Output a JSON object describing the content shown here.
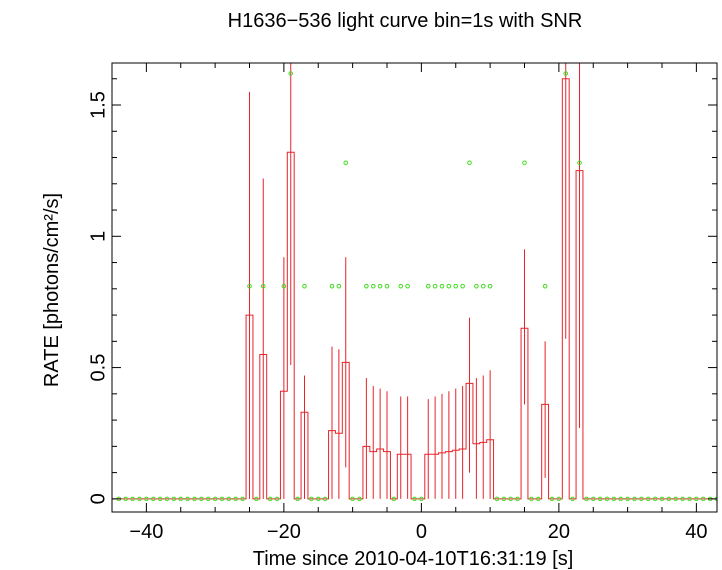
{
  "chart_data": {
    "type": "line",
    "title": "H1636−536 light curve bin=1s with SNR",
    "xlabel": "Time since 2010-04-10T16:31:19 [s]",
    "ylabel": "RATE [photons/cm²/s]",
    "xlim": [
      -45,
      43
    ],
    "ylim": [
      -0.05,
      1.66
    ],
    "x_ticks": [
      -40,
      -20,
      0,
      20,
      40
    ],
    "x_tick_labels": [
      "−40",
      "−20",
      "0",
      "20",
      "40"
    ],
    "y_ticks": [
      0,
      0.5,
      1,
      1.5
    ],
    "y_tick_labels": [
      "0",
      "0.5",
      "1",
      "1.5"
    ],
    "series": [
      {
        "style": "step with error bars",
        "color": "#e8232a",
        "x": [
          -26,
          -25,
          -24,
          -23,
          -22,
          -21,
          -20,
          -19,
          -18,
          -17,
          -16,
          -15,
          -14,
          -13,
          -12,
          -11,
          -10,
          -9,
          -8,
          -7,
          -6,
          -5,
          -4,
          -3,
          -2,
          -1,
          0,
          1,
          2,
          3,
          4,
          5,
          6,
          7,
          8,
          9,
          10,
          11,
          12,
          13,
          14,
          15,
          16,
          17,
          18,
          19,
          20,
          21,
          22,
          23,
          24
        ],
        "y": [
          0,
          0.7,
          0,
          0.55,
          0,
          0,
          0.41,
          1.32,
          0,
          0.33,
          0,
          0,
          0,
          0.26,
          0.25,
          0.52,
          0,
          0,
          0.2,
          0.18,
          0.19,
          0.18,
          0,
          0.17,
          0.17,
          0,
          0,
          0.17,
          0.17,
          0.175,
          0.18,
          0.185,
          0.19,
          0.44,
          0.21,
          0.215,
          0.225,
          0,
          0,
          0,
          0,
          0.65,
          0,
          0,
          0.36,
          0,
          0,
          1.6,
          0,
          1.25,
          0
        ],
        "y_upper": [
          0,
          1.55,
          0,
          1.22,
          0,
          0,
          0.92,
          1.66,
          0,
          0.47,
          0,
          0,
          0,
          0.58,
          0.57,
          0.92,
          0,
          0,
          0.46,
          0.43,
          0.42,
          0.41,
          0,
          0.39,
          0.39,
          0,
          0,
          0.38,
          0.39,
          0.4,
          0.41,
          0.42,
          0.43,
          0.69,
          0.46,
          0.47,
          0.49,
          0,
          0,
          0,
          0,
          0.95,
          0,
          0,
          0.6,
          0,
          0,
          1.66,
          0,
          1.66,
          0
        ],
        "y_lower": [
          0,
          0,
          0,
          0,
          0,
          0,
          0,
          0.51,
          0,
          0,
          0,
          0,
          0,
          0,
          0,
          0.12,
          0,
          0,
          0,
          0,
          0,
          0,
          0,
          0,
          0,
          0,
          0,
          0,
          0,
          0,
          0,
          0,
          0,
          0.1,
          0,
          0,
          0,
          0,
          0,
          0,
          0,
          0.36,
          0,
          0,
          0.08,
          0,
          0,
          0.61,
          0,
          0.27,
          0
        ]
      },
      {
        "style": "open circles",
        "color": "#44dd22",
        "x": [
          -44,
          -43,
          -42,
          -41,
          -40,
          -39,
          -38,
          -37,
          -36,
          -35,
          -34,
          -33,
          -32,
          -31,
          -30,
          -29,
          -28,
          -27,
          -26,
          -25,
          -24,
          -23,
          -22,
          -21,
          -20,
          -19,
          -18,
          -17,
          -16,
          -15,
          -14,
          -13,
          -12,
          -11,
          -10,
          -9,
          -8,
          -7,
          -6,
          -5,
          -4,
          -3,
          -2,
          -1,
          0,
          1,
          2,
          3,
          4,
          5,
          6,
          7,
          8,
          9,
          10,
          11,
          12,
          13,
          14,
          15,
          16,
          17,
          18,
          19,
          20,
          21,
          22,
          23,
          24,
          25,
          26,
          27,
          28,
          29,
          30,
          31,
          32,
          33,
          34,
          35,
          36,
          37,
          38,
          39,
          40,
          41,
          42,
          43
        ],
        "y": [
          0,
          0,
          0,
          0,
          0,
          0,
          0,
          0,
          0,
          0,
          0,
          0,
          0,
          0,
          0,
          0,
          0,
          0,
          0,
          0.81,
          0,
          0.81,
          0,
          0,
          0.81,
          1.62,
          0,
          0.81,
          0,
          0,
          0,
          0.81,
          0.81,
          1.28,
          0,
          0,
          0.81,
          0.81,
          0.81,
          0.81,
          0,
          0.81,
          0.81,
          0,
          0,
          0.81,
          0.81,
          0.81,
          0.81,
          0.81,
          0.81,
          1.28,
          0.81,
          0.81,
          0.81,
          0,
          0,
          0,
          0,
          1.28,
          0,
          0,
          0.81,
          0,
          0,
          1.62,
          0,
          1.28,
          0,
          0,
          0,
          0,
          0,
          0,
          0,
          0,
          0,
          0,
          0,
          0,
          0,
          0,
          0,
          0,
          0,
          0,
          0,
          0
        ]
      }
    ]
  }
}
